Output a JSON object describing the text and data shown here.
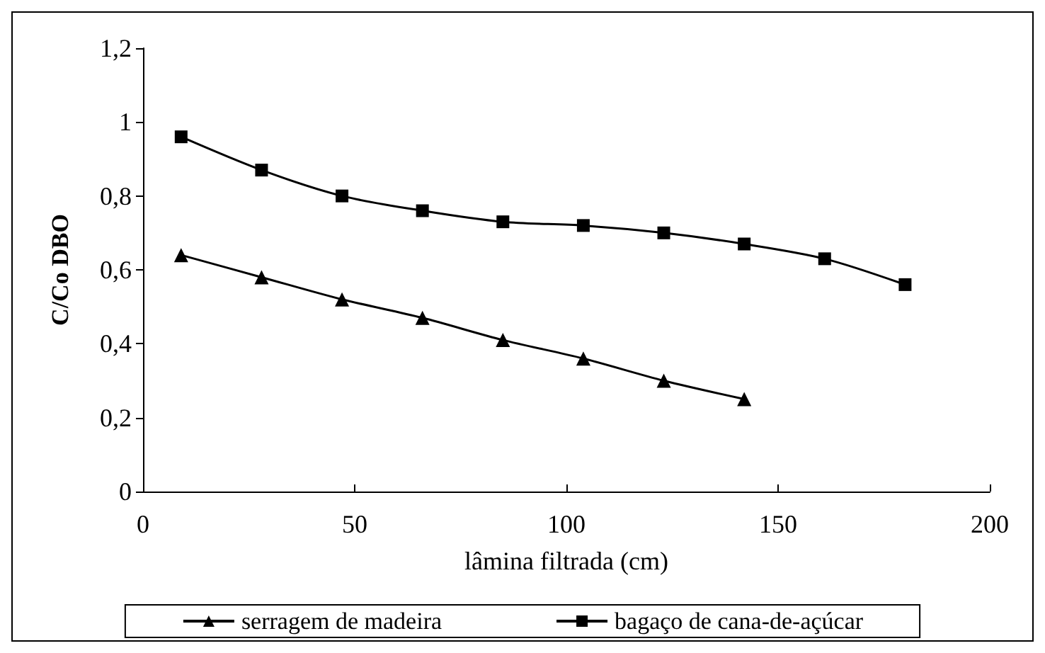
{
  "chart_data": {
    "type": "line",
    "xlabel": "lâmina filtrada (cm)",
    "ylabel": "C/Co DBO",
    "series": [
      {
        "name": "serragem de madeira",
        "color": "#000000",
        "marker": "triangle",
        "x": [
          9,
          28,
          47,
          66,
          85,
          104,
          123,
          142
        ],
        "values": [
          0.64,
          0.58,
          0.52,
          0.47,
          0.41,
          0.36,
          0.3,
          0.25
        ]
      },
      {
        "name": "bagaço de cana-de-açúcar",
        "color": "#000000",
        "marker": "square",
        "x": [
          9,
          28,
          47,
          66,
          85,
          104,
          123,
          142,
          161,
          180
        ],
        "values": [
          0.96,
          0.87,
          0.8,
          0.76,
          0.73,
          0.72,
          0.7,
          0.67,
          0.63,
          0.56
        ]
      }
    ],
    "xlim": [
      0,
      200
    ],
    "xticks": [
      0,
      50,
      100,
      150,
      200
    ],
    "ylim": [
      0,
      1.2
    ],
    "yticks": [
      0,
      {
        "value": 0.2,
        "label": "0,2"
      },
      {
        "value": 0.4,
        "label": "0,4"
      },
      {
        "value": 0.6,
        "label": "0,6"
      },
      {
        "value": 0.8,
        "label": "0,8"
      },
      1,
      {
        "value": 1.2,
        "label": "1,2"
      }
    ],
    "grid": false,
    "legend": "bottom",
    "line_style": "solid"
  }
}
